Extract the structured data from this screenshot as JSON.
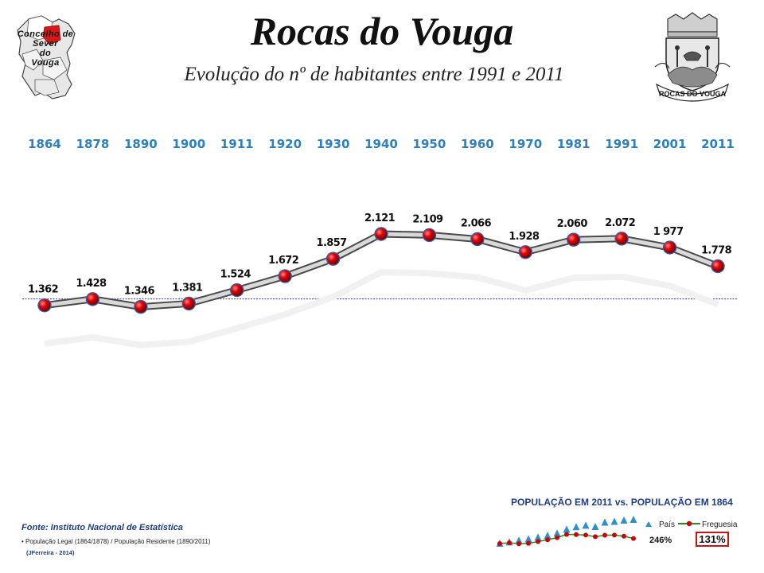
{
  "header": {
    "title": "Rocas do Vouga",
    "subtitle": "Evolução do nº de habitantes entre 1991 e 2011"
  },
  "logos": {
    "municipality_text": [
      "Concelho de",
      "Sever",
      "do",
      "Vouga"
    ],
    "coat_of_arms_text": "ROCAS DO VOUGA"
  },
  "chart_data": {
    "type": "line",
    "title": "Evolução do nº de habitantes entre 1991 e 2011",
    "categories": [
      "1864",
      "1878",
      "1890",
      "1900",
      "1911",
      "1920",
      "1930",
      "1940",
      "1950",
      "1960",
      "1970",
      "1981",
      "1991",
      "2001",
      "2011"
    ],
    "values": [
      1362,
      1428,
      1346,
      1381,
      1524,
      1672,
      1857,
      2121,
      2109,
      2066,
      1928,
      2060,
      2072,
      1977,
      1778
    ],
    "data_labels": [
      "1.362",
      "1.428",
      "1.346",
      "1.381",
      "1.524",
      "1.672",
      "1.857",
      "2.121",
      "2.109",
      "2.066",
      "1.928",
      "2.060",
      "2.072",
      "1 977",
      "1.778"
    ],
    "reference_line": 1362,
    "xlabel": "",
    "ylabel": "",
    "ylim": [
      1300,
      2200
    ],
    "colors": {
      "year_labels": "#2d7fbd",
      "markers": "#cc0000",
      "line": "#6e6e6e",
      "reference": "#3333aa"
    }
  },
  "footer": {
    "source": "Fonte: Instituto Nacional de Estatística",
    "note": "População Legal (1864/1878) / População Residente (1890/2011)",
    "author": "(JFerreira - 2014)"
  },
  "comparison": {
    "title": "POPULAÇÃO EM 2011 vs. POPULAÇÃO EM 1864",
    "legend_country": "País",
    "legend_parish": "Freguesia",
    "country_pct": "246%",
    "parish_pct": "131%",
    "country_index": [
      100,
      108,
      118,
      127,
      137,
      148,
      162,
      186,
      201,
      210,
      202,
      229,
      234,
      242,
      246
    ],
    "parish_index": [
      100,
      105,
      99,
      101,
      112,
      123,
      136,
      156,
      155,
      152,
      142,
      151,
      152,
      145,
      131
    ]
  }
}
